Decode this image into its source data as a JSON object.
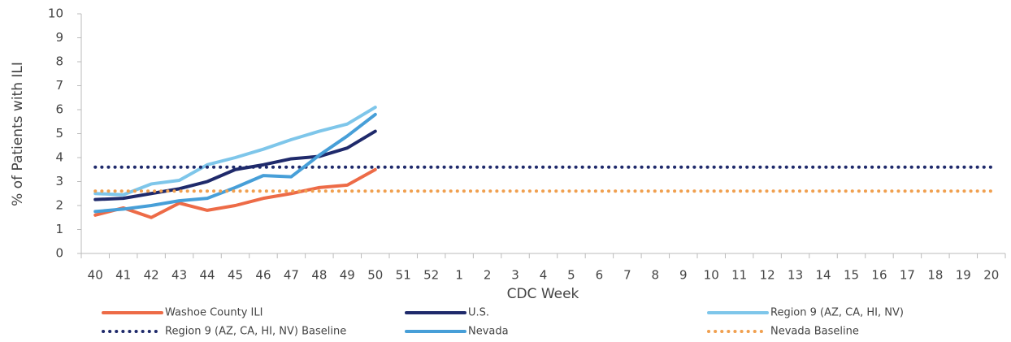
{
  "chart_data": {
    "type": "line",
    "xlabel": "CDC Week",
    "ylabel": "% of Patients with ILI",
    "categories": [
      "40",
      "41",
      "42",
      "43",
      "44",
      "45",
      "46",
      "47",
      "48",
      "49",
      "50",
      "51",
      "52",
      "1",
      "2",
      "3",
      "4",
      "5",
      "6",
      "7",
      "8",
      "9",
      "10",
      "11",
      "12",
      "13",
      "14",
      "15",
      "16",
      "17",
      "18",
      "19",
      "20"
    ],
    "ylim": [
      0,
      10
    ],
    "yticks": [
      0,
      1,
      2,
      3,
      4,
      5,
      6,
      7,
      8,
      9,
      10
    ],
    "grid": false,
    "legend": "bottom",
    "series": [
      {
        "name": "Washoe County ILI",
        "color": "#ed6b47",
        "style": "solid",
        "values": [
          1.6,
          1.9,
          1.5,
          2.1,
          1.8,
          2.0,
          2.3,
          2.5,
          2.75,
          2.85,
          3.5,
          null,
          null,
          null,
          null,
          null,
          null,
          null,
          null,
          null,
          null,
          null,
          null,
          null,
          null,
          null,
          null,
          null,
          null,
          null,
          null,
          null,
          null
        ]
      },
      {
        "name": "U.S.",
        "color": "#1f2a6b",
        "style": "solid",
        "values": [
          2.25,
          2.3,
          2.5,
          2.7,
          3.0,
          3.5,
          3.7,
          3.95,
          4.05,
          4.4,
          5.1,
          null,
          null,
          null,
          null,
          null,
          null,
          null,
          null,
          null,
          null,
          null,
          null,
          null,
          null,
          null,
          null,
          null,
          null,
          null,
          null,
          null,
          null
        ]
      },
      {
        "name": "Region 9 (AZ, CA, HI, NV)",
        "color": "#7ec6ea",
        "style": "solid",
        "values": [
          2.5,
          2.45,
          2.9,
          3.05,
          3.7,
          4.0,
          4.35,
          4.75,
          5.1,
          5.4,
          6.1,
          null,
          null,
          null,
          null,
          null,
          null,
          null,
          null,
          null,
          null,
          null,
          null,
          null,
          null,
          null,
          null,
          null,
          null,
          null,
          null,
          null,
          null
        ]
      },
      {
        "name": "Region 9 (AZ, CA, HI, NV) Baseline",
        "color": "#1f2a6b",
        "style": "dotted",
        "values": [
          3.6,
          3.6,
          3.6,
          3.6,
          3.6,
          3.6,
          3.6,
          3.6,
          3.6,
          3.6,
          3.6,
          3.6,
          3.6,
          3.6,
          3.6,
          3.6,
          3.6,
          3.6,
          3.6,
          3.6,
          3.6,
          3.6,
          3.6,
          3.6,
          3.6,
          3.6,
          3.6,
          3.6,
          3.6,
          3.6,
          3.6,
          3.6,
          3.6
        ]
      },
      {
        "name": "Nevada",
        "color": "#479fd8",
        "style": "solid",
        "values": [
          1.75,
          1.85,
          2.0,
          2.2,
          2.3,
          2.75,
          3.25,
          3.2,
          4.1,
          4.9,
          5.8,
          null,
          null,
          null,
          null,
          null,
          null,
          null,
          null,
          null,
          null,
          null,
          null,
          null,
          null,
          null,
          null,
          null,
          null,
          null,
          null,
          null,
          null
        ]
      },
      {
        "name": "Nevada Baseline",
        "color": "#f0a050",
        "style": "dotted",
        "values": [
          2.6,
          2.6,
          2.6,
          2.6,
          2.6,
          2.6,
          2.6,
          2.6,
          2.6,
          2.6,
          2.6,
          2.6,
          2.6,
          2.6,
          2.6,
          2.6,
          2.6,
          2.6,
          2.6,
          2.6,
          2.6,
          2.6,
          2.6,
          2.6,
          2.6,
          2.6,
          2.6,
          2.6,
          2.6,
          2.6,
          2.6,
          2.6,
          2.6
        ]
      }
    ]
  }
}
